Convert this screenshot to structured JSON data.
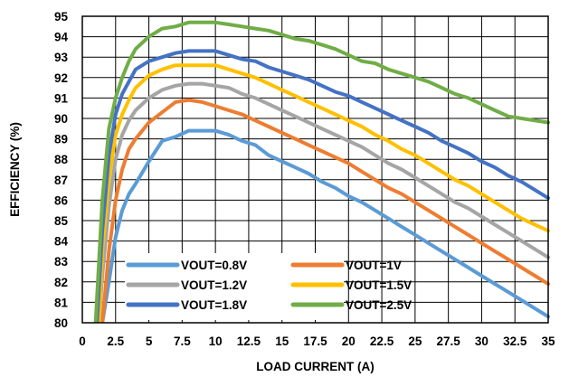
{
  "chart_data": {
    "type": "line",
    "xlabel": "LOAD CURRENT (A)",
    "ylabel": "EFFICIENCY (%)",
    "xlim": [
      0,
      35
    ],
    "ylim": [
      80,
      95
    ],
    "xticks": [
      "0",
      "2.5",
      "5",
      "7.5",
      "10",
      "12.5",
      "15",
      "17.5",
      "20",
      "22.5",
      "25",
      "27.5",
      "30",
      "32.5",
      "35"
    ],
    "yticks": [
      "80",
      "81",
      "82",
      "83",
      "84",
      "85",
      "86",
      "87",
      "88",
      "89",
      "90",
      "91",
      "92",
      "93",
      "94",
      "95"
    ],
    "grid": true,
    "legend_position": "bottom-left inside",
    "series": [
      {
        "name": "VOUT=0.8V",
        "color": "#5B9BD5",
        "x": [
          1.5,
          2,
          2.5,
          3,
          3.5,
          4,
          5,
          6,
          7,
          8,
          9,
          10,
          11,
          12,
          13,
          14,
          15,
          16,
          17,
          18,
          19,
          20,
          21,
          22,
          23,
          24,
          25,
          26,
          27,
          28,
          29,
          30,
          31,
          32,
          33,
          34,
          35
        ],
        "y": [
          80.0,
          82.0,
          84.2,
          85.5,
          86.3,
          86.8,
          87.9,
          88.9,
          89.1,
          89.4,
          89.4,
          89.4,
          89.2,
          88.9,
          88.7,
          88.2,
          87.9,
          87.6,
          87.3,
          86.9,
          86.6,
          86.2,
          85.9,
          85.5,
          85.1,
          84.7,
          84.3,
          83.9,
          83.5,
          83.1,
          82.7,
          82.3,
          81.9,
          81.5,
          81.1,
          80.7,
          80.3
        ]
      },
      {
        "name": "VOUT=1V",
        "color": "#ED7D31",
        "x": [
          1.5,
          2,
          2.5,
          3,
          3.5,
          4,
          5,
          6,
          7,
          8,
          9,
          10,
          11,
          12,
          13,
          14,
          15,
          16,
          17,
          18,
          19,
          20,
          21,
          22,
          23,
          24,
          25,
          26,
          27,
          28,
          29,
          30,
          31,
          32,
          33,
          34,
          35
        ],
        "y": [
          80.0,
          83.5,
          86.0,
          87.5,
          88.5,
          89.0,
          89.8,
          90.3,
          90.8,
          90.9,
          90.8,
          90.6,
          90.4,
          90.2,
          89.9,
          89.6,
          89.3,
          89.0,
          88.7,
          88.4,
          88.1,
          87.8,
          87.4,
          87.0,
          86.6,
          86.3,
          85.9,
          85.5,
          85.1,
          84.7,
          84.3,
          83.9,
          83.5,
          83.1,
          82.7,
          82.3,
          81.9
        ]
      },
      {
        "name": "VOUT=1.2V",
        "color": "#A5A5A5",
        "x": [
          1.25,
          1.5,
          2,
          2.5,
          3,
          3.5,
          4,
          5,
          6,
          7,
          8,
          9,
          10,
          11,
          12,
          13,
          14,
          15,
          16,
          17,
          18,
          19,
          20,
          21,
          22,
          23,
          24,
          25,
          26,
          27,
          28,
          29,
          30,
          31,
          32,
          33,
          34,
          35
        ],
        "y": [
          80.0,
          82.3,
          85.7,
          88.0,
          89.2,
          89.9,
          90.4,
          91.0,
          91.4,
          91.6,
          91.7,
          91.7,
          91.6,
          91.5,
          91.2,
          91.0,
          90.7,
          90.4,
          90.1,
          89.8,
          89.5,
          89.2,
          88.9,
          88.6,
          88.2,
          87.8,
          87.5,
          87.1,
          86.7,
          86.3,
          85.9,
          85.6,
          85.2,
          84.8,
          84.4,
          84.0,
          83.6,
          83.2
        ]
      },
      {
        "name": "VOUT=1.5V",
        "color": "#FFC000",
        "x": [
          1.25,
          1.5,
          2,
          2.5,
          3,
          3.5,
          4,
          5,
          6,
          7,
          8,
          9,
          10,
          11,
          12,
          13,
          14,
          15,
          16,
          17,
          18,
          19,
          20,
          21,
          22,
          23,
          24,
          25,
          26,
          27,
          28,
          29,
          30,
          31,
          32,
          33,
          34,
          35
        ],
        "y": [
          80.0,
          83.5,
          87.0,
          89.2,
          90.2,
          90.9,
          91.5,
          92.1,
          92.4,
          92.6,
          92.6,
          92.6,
          92.6,
          92.4,
          92.2,
          92.0,
          91.7,
          91.4,
          91.1,
          90.8,
          90.5,
          90.2,
          89.9,
          89.6,
          89.2,
          88.9,
          88.5,
          88.2,
          87.8,
          87.4,
          87.0,
          86.7,
          86.3,
          85.9,
          85.5,
          85.1,
          84.8,
          84.5
        ]
      },
      {
        "name": "VOUT=1.8V",
        "color": "#4472C4",
        "x": [
          1.1,
          1.5,
          2,
          2.5,
          3,
          3.5,
          4,
          5,
          6,
          7,
          8,
          9,
          10,
          11,
          12,
          13,
          14,
          15,
          16,
          17,
          18,
          19,
          20,
          21,
          22,
          23,
          24,
          25,
          26,
          27,
          28,
          29,
          30,
          31,
          32,
          33,
          34,
          35
        ],
        "y": [
          80.0,
          84.5,
          88.2,
          90.2,
          91.2,
          91.8,
          92.4,
          92.8,
          93.0,
          93.2,
          93.3,
          93.3,
          93.3,
          93.1,
          92.9,
          92.8,
          92.5,
          92.3,
          92.1,
          91.9,
          91.6,
          91.3,
          91.1,
          90.8,
          90.5,
          90.2,
          89.9,
          89.6,
          89.3,
          88.9,
          88.6,
          88.3,
          87.9,
          87.6,
          87.2,
          86.9,
          86.5,
          86.1
        ]
      },
      {
        "name": "VOUT=2.5V",
        "color": "#70AD47",
        "x": [
          1.0,
          1.25,
          1.5,
          2,
          2.5,
          3,
          3.5,
          4,
          4.5,
          5,
          6,
          7,
          8,
          9,
          10,
          11,
          12,
          13,
          14,
          15,
          16,
          17,
          18,
          19,
          20,
          21,
          22,
          23,
          24,
          25,
          26,
          27,
          28,
          29,
          30,
          31,
          32,
          33,
          34,
          35
        ],
        "y": [
          80.0,
          83.0,
          86.0,
          89.5,
          91.0,
          92.0,
          92.8,
          93.4,
          93.7,
          94.0,
          94.4,
          94.5,
          94.7,
          94.7,
          94.7,
          94.6,
          94.5,
          94.4,
          94.3,
          94.1,
          93.9,
          93.8,
          93.6,
          93.4,
          93.1,
          92.8,
          92.7,
          92.4,
          92.2,
          92.0,
          91.8,
          91.5,
          91.2,
          91.0,
          90.7,
          90.4,
          90.1,
          90.0,
          89.9,
          89.8
        ]
      }
    ]
  }
}
